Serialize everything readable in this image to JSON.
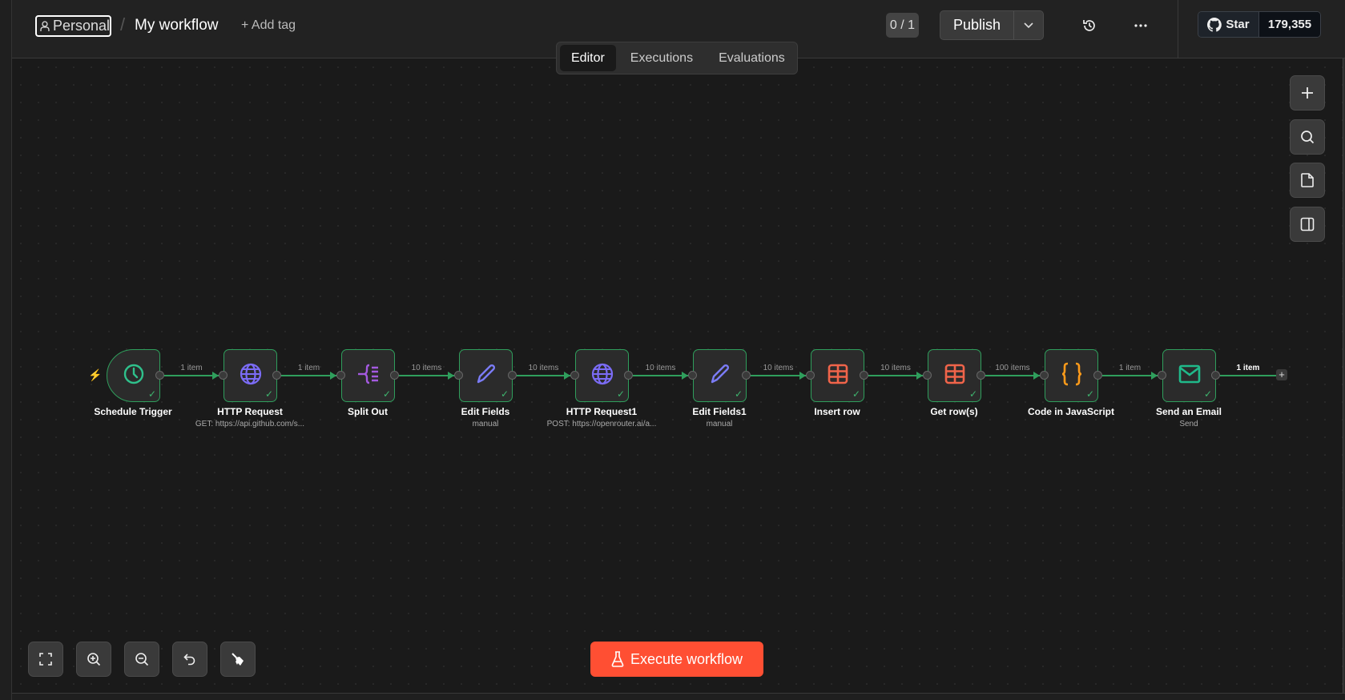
{
  "header": {
    "project": "Personal",
    "separator": "/",
    "workflow_name": "My workflow",
    "add_tag": "+ Add tag",
    "tabs": [
      {
        "label": "Editor",
        "active": true
      },
      {
        "label": "Executions",
        "active": false
      },
      {
        "label": "Evaluations",
        "active": false
      }
    ],
    "version_badge": "0 / 1",
    "publish_label": "Publish",
    "github": {
      "star_label": "Star",
      "count": "179,355"
    }
  },
  "nodes": [
    {
      "name": "Schedule Trigger",
      "subtitle": "",
      "icon": "clock-icon",
      "color": "#2fc18c",
      "trigger": true
    },
    {
      "name": "HTTP Request",
      "subtitle": "GET: https://api.github.com/s...",
      "icon": "globe-icon",
      "color": "#7b6cf6"
    },
    {
      "name": "Split Out",
      "subtitle": "",
      "icon": "split-out-icon",
      "color": "#a45ae0"
    },
    {
      "name": "Edit Fields",
      "subtitle": "manual",
      "icon": "pencil-icon",
      "color": "#7b7cf6"
    },
    {
      "name": "HTTP Request1",
      "subtitle": "POST: https://openrouter.ai/a...",
      "icon": "globe-icon",
      "color": "#7b6cf6"
    },
    {
      "name": "Edit Fields1",
      "subtitle": "manual",
      "icon": "pencil-icon",
      "color": "#7b7cf6"
    },
    {
      "name": "Insert row",
      "subtitle": "",
      "icon": "table-icon",
      "color": "#f0644a"
    },
    {
      "name": "Get row(s)",
      "subtitle": "",
      "icon": "table-icon",
      "color": "#f0644a"
    },
    {
      "name": "Code in JavaScript",
      "subtitle": "",
      "icon": "code-braces-icon",
      "color": "#ff9b1a"
    },
    {
      "name": "Send an Email",
      "subtitle": "Send",
      "icon": "envelope-icon",
      "color": "#20b98a"
    }
  ],
  "edges": [
    "1 item",
    "1 item",
    "10 items",
    "10 items",
    "10 items",
    "10 items",
    "10 items",
    "100 items",
    "1 item",
    "1 item"
  ],
  "execute_label": "Execute workflow",
  "colors": {
    "accent": "#ff4f33",
    "success": "#2f9e5c"
  }
}
